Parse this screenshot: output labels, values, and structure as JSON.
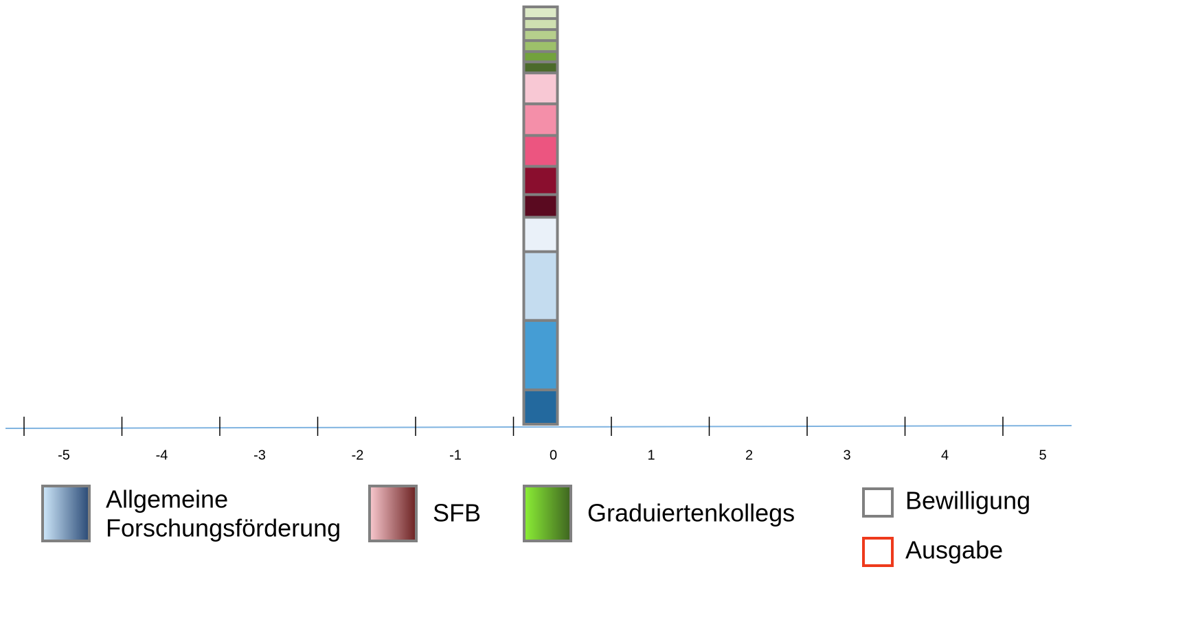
{
  "chart_data": {
    "type": "stacked-bar",
    "categories": [
      -5,
      -4,
      -3,
      -2,
      -1,
      0,
      1,
      2,
      3,
      4,
      5
    ],
    "bar_category": 0,
    "segments": [
      {
        "color": "#23699e",
        "value": 50
      },
      {
        "color": "#459dd4",
        "value": 101
      },
      {
        "color": "#c4dcef",
        "value": 100
      },
      {
        "color": "#eaf1f9",
        "value": 50
      },
      {
        "color": "#5a0a20",
        "value": 33
      },
      {
        "color": "#8a0e2e",
        "value": 41
      },
      {
        "color": "#ec5580",
        "value": 45
      },
      {
        "color": "#f48fa9",
        "value": 46
      },
      {
        "color": "#f8c8d4",
        "value": 45
      },
      {
        "color": "#4b6a2b",
        "value": 16
      },
      {
        "color": "#72a23c",
        "value": 15
      },
      {
        "color": "#9dc06a",
        "value": 16
      },
      {
        "color": "#b6cf8c",
        "value": 16
      },
      {
        "color": "#cfe0b1",
        "value": 16
      },
      {
        "color": "#dce9c6",
        "value": 17
      }
    ],
    "bar_outline": "#808080",
    "axis_color": "#7fb3e0",
    "legend": [
      {
        "name": [
          "Allgemeine",
          "Forschungsförderung"
        ],
        "colors": [
          "#cfe8fb",
          "#2a4a75"
        ]
      },
      {
        "name": [
          "SFB"
        ],
        "colors": [
          "#f9c9cf",
          "#6a2020"
        ]
      },
      {
        "name": [
          "Graduiertenkollegs"
        ],
        "colors": [
          "#8cf036",
          "#3e6420"
        ]
      }
    ],
    "status_legend": [
      {
        "name": "Bewilligung",
        "color": "#808080"
      },
      {
        "name": "Ausgabe",
        "color": "#ee3a1c"
      }
    ]
  }
}
